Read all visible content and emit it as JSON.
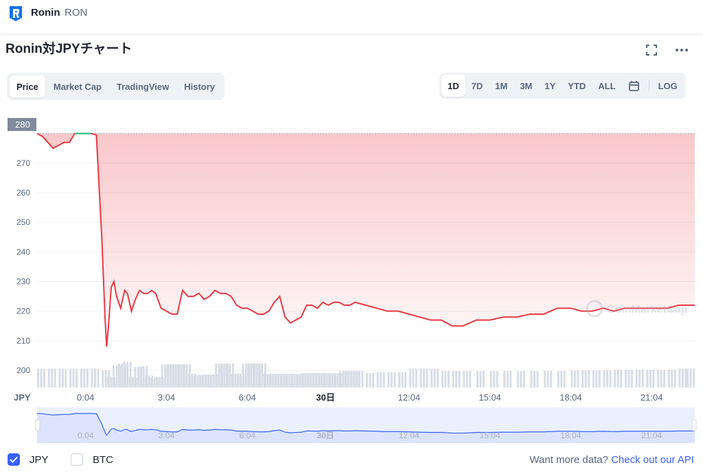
{
  "header": {
    "coin_name": "Ronin",
    "coin_symbol": "RON",
    "logo_icon": "ronin-logo-icon",
    "brand_color": "#1273EA"
  },
  "chart_header": {
    "title": "Ronin対JPYチャート",
    "fullscreen_icon": "fullscreen-icon",
    "more_icon": "more-dots-icon"
  },
  "tabs": [
    "Price",
    "Market Cap",
    "TradingView",
    "History"
  ],
  "active_tab": "Price",
  "ranges": [
    "1D",
    "7D",
    "1M",
    "3M",
    "1Y",
    "YTD",
    "ALL"
  ],
  "active_range": "1D",
  "calendar_icon": "calendar-icon",
  "log_label": "LOG",
  "watermark": "CoinMarketCap",
  "colors": {
    "down": "#ea3943",
    "up": "#16c784",
    "accent": "#3861fb",
    "volume": "#cfd6e4"
  },
  "chart_data": {
    "type": "line",
    "currency_label": "JPY",
    "current_price_label": "280",
    "y_ticks": [
      "280",
      "270",
      "260",
      "250",
      "240",
      "230",
      "220",
      "210",
      "200"
    ],
    "ylim": [
      200,
      282
    ],
    "x_ticks": [
      "0:04",
      "3:04",
      "6:04",
      "30日",
      "12:04",
      "15:04",
      "18:04",
      "21:04"
    ],
    "x_tick_hours": [
      0,
      3,
      6,
      8.9,
      12,
      15,
      18,
      21
    ],
    "x_range_hours": [
      -1.8,
      22.6
    ],
    "reference_price": 280,
    "series": [
      {
        "x": [
          -1.8,
          -1.6,
          -1.4,
          -1.2,
          -1.0,
          -0.8,
          -0.6,
          -0.4,
          -0.2,
          0.0,
          0.2,
          0.4,
          0.6,
          0.72,
          0.78,
          0.85,
          0.95,
          1.05,
          1.15,
          1.3,
          1.45,
          1.55,
          1.7,
          1.85,
          2.0,
          2.15,
          2.3,
          2.45,
          2.6,
          2.8,
          3.0,
          3.2,
          3.4,
          3.6,
          3.8,
          4.0,
          4.2,
          4.4,
          4.6,
          4.8,
          5.0,
          5.2,
          5.4,
          5.6,
          5.8,
          6.0,
          6.2,
          6.4,
          6.6,
          6.8,
          7.0,
          7.2,
          7.4,
          7.6,
          7.8,
          8.0,
          8.2,
          8.4,
          8.6,
          8.8,
          9.0,
          9.2,
          9.4,
          9.6,
          9.8,
          10.0,
          10.4,
          10.8,
          11.2,
          11.6,
          12.0,
          12.4,
          12.8,
          13.2,
          13.6,
          14.0,
          14.5,
          15.0,
          15.5,
          16.0,
          16.5,
          17.0,
          17.5,
          18.0,
          18.4,
          18.8,
          19.2,
          19.6,
          20.0,
          20.4,
          20.8,
          21.2,
          21.6,
          22.0,
          22.3,
          22.6
        ],
        "y": [
          280,
          279,
          277,
          275,
          276,
          277,
          277,
          280,
          280,
          280,
          280,
          279.5,
          245,
          218,
          208,
          215,
          228,
          230,
          225,
          221,
          227,
          226,
          220,
          224,
          227,
          226,
          226,
          227,
          226,
          221,
          220,
          219,
          219,
          227,
          225,
          225,
          226,
          224,
          225,
          227,
          226,
          226,
          225,
          222,
          221,
          221,
          220,
          219,
          219,
          220,
          223,
          225,
          218,
          216,
          217,
          218,
          222,
          222,
          221,
          223,
          222,
          223,
          223,
          222,
          222,
          223,
          222,
          221,
          220,
          220,
          219,
          218,
          217,
          217,
          215,
          215,
          217,
          217,
          218,
          218,
          219,
          219,
          221,
          221,
          220,
          220,
          221,
          220,
          221,
          221,
          221,
          221,
          221,
          222,
          222,
          222
        ]
      }
    ],
    "volume": [
      [
        -1.8,
        0.55
      ],
      [
        -1.4,
        0.55
      ],
      [
        -1.0,
        0.55
      ],
      [
        -0.6,
        0.55
      ],
      [
        -0.2,
        0.55
      ],
      [
        0.2,
        0.55
      ],
      [
        0.6,
        0.5
      ],
      [
        0.8,
        0.3
      ],
      [
        1.0,
        0.65
      ],
      [
        1.2,
        0.7
      ],
      [
        1.4,
        0.75
      ],
      [
        1.6,
        0.3
      ],
      [
        1.8,
        0.6
      ],
      [
        2.0,
        0.62
      ],
      [
        2.2,
        0.35
      ],
      [
        2.4,
        0.3
      ],
      [
        2.6,
        0.3
      ],
      [
        2.8,
        0.68
      ],
      [
        3.0,
        0.68
      ],
      [
        3.2,
        0.68
      ],
      [
        3.4,
        0.68
      ],
      [
        3.6,
        0.68
      ],
      [
        3.8,
        0.4
      ],
      [
        4.0,
        0.35
      ],
      [
        4.2,
        0.38
      ],
      [
        4.4,
        0.38
      ],
      [
        4.6,
        0.38
      ],
      [
        4.8,
        0.7
      ],
      [
        5.0,
        0.7
      ],
      [
        5.2,
        0.7
      ],
      [
        5.4,
        0.4
      ],
      [
        5.6,
        0.4
      ],
      [
        5.8,
        0.7
      ],
      [
        6.0,
        0.7
      ],
      [
        6.2,
        0.7
      ],
      [
        6.4,
        0.7
      ],
      [
        6.6,
        0.4
      ],
      [
        6.8,
        0.4
      ],
      [
        7.0,
        0.4
      ],
      [
        7.2,
        0.4
      ],
      [
        7.4,
        0.4
      ],
      [
        7.6,
        0.4
      ],
      [
        7.8,
        0.4
      ],
      [
        8.0,
        0.42
      ],
      [
        8.2,
        0.42
      ],
      [
        8.4,
        0.42
      ],
      [
        8.6,
        0.42
      ],
      [
        8.8,
        0.42
      ],
      [
        9.0,
        0.42
      ],
      [
        9.2,
        0.42
      ],
      [
        9.4,
        0.48
      ],
      [
        9.6,
        0.48
      ],
      [
        9.8,
        0.48
      ],
      [
        10.0,
        0.48
      ],
      [
        10.4,
        0.42
      ],
      [
        10.8,
        0.45
      ],
      [
        11.2,
        0.45
      ],
      [
        11.6,
        0.45
      ],
      [
        12.0,
        0.55
      ],
      [
        12.4,
        0.55
      ],
      [
        12.8,
        0.55
      ],
      [
        13.2,
        0.48
      ],
      [
        13.6,
        0.48
      ],
      [
        14.0,
        0.48
      ],
      [
        14.5,
        0.48
      ],
      [
        15.0,
        0.48
      ],
      [
        15.5,
        0.48
      ],
      [
        16.0,
        0.48
      ],
      [
        16.5,
        0.48
      ],
      [
        17.0,
        0.48
      ],
      [
        17.5,
        0.48
      ],
      [
        18.0,
        0.5
      ],
      [
        18.4,
        0.5
      ],
      [
        18.8,
        0.5
      ],
      [
        19.2,
        0.5
      ],
      [
        19.6,
        0.52
      ],
      [
        20.0,
        0.52
      ],
      [
        20.4,
        0.52
      ],
      [
        20.8,
        0.52
      ],
      [
        21.2,
        0.52
      ],
      [
        21.6,
        0.52
      ],
      [
        22.0,
        0.55
      ],
      [
        22.3,
        0.55
      ]
    ],
    "grid": true,
    "log_scale": false
  },
  "footer": {
    "jpy_label": "JPY",
    "jpy_checked": true,
    "btc_label": "BTC",
    "btc_checked": false,
    "more_data_text": "Want more data?",
    "api_link": "Check out our API"
  }
}
